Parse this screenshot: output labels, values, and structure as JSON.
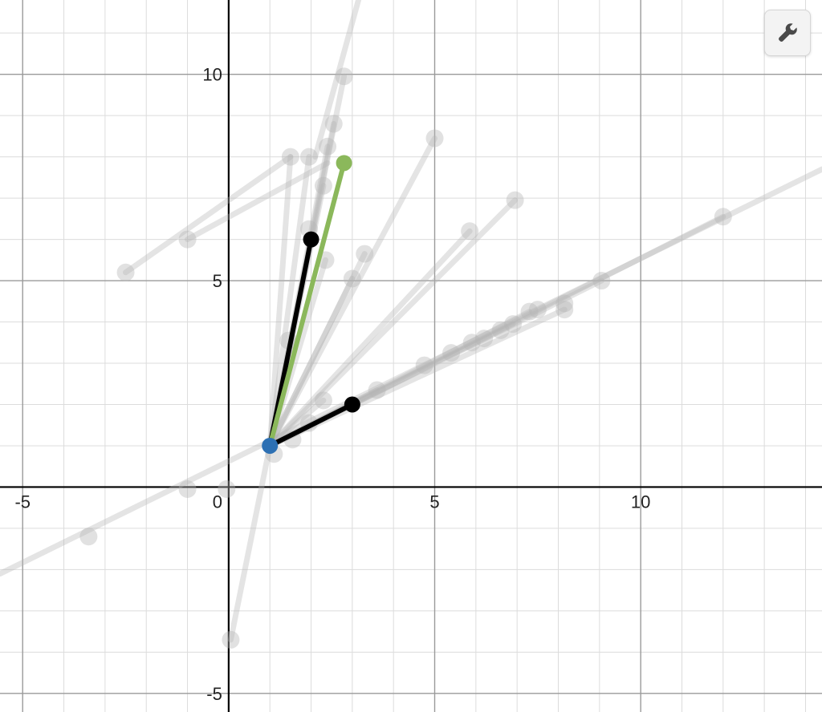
{
  "settings_button": {
    "icon": "wrench-icon"
  },
  "chart_data": {
    "type": "scatter",
    "xlim": [
      -5.55,
      14.4
    ],
    "ylim": [
      -5.45,
      11.8
    ],
    "grid": true,
    "x_ticks": [
      -5,
      0,
      5,
      10
    ],
    "y_ticks": [
      -5,
      5,
      10
    ],
    "x_tick_labels": [
      "-5",
      "0",
      "5",
      "10"
    ],
    "y_tick_labels": [
      "-5",
      "5",
      "10"
    ],
    "origin_point": {
      "x": 1,
      "y": 1,
      "color": "#2d70b3"
    },
    "ghost_color": "#b4b4b4",
    "ghost_segments": [
      {
        "x1": 1,
        "y1": 1,
        "x2": 2.8,
        "y2": 9.95
      },
      {
        "x1": 1,
        "y1": 1,
        "x2": 2.55,
        "y2": 8.8
      },
      {
        "x1": 1,
        "y1": 1,
        "x2": 2.4,
        "y2": 8.25
      },
      {
        "x1": 1,
        "y1": 1,
        "x2": 2.3,
        "y2": 7.3
      },
      {
        "x1": 1,
        "y1": 1,
        "x2": 2.35,
        "y2": 5.5
      },
      {
        "x1": 1,
        "y1": 1,
        "x2": 3.3,
        "y2": 5.65
      },
      {
        "x1": 1,
        "y1": 1,
        "x2": 3,
        "y2": 5.05
      },
      {
        "x1": 1,
        "y1": 1,
        "x2": 5,
        "y2": 8.45
      },
      {
        "x1": 1,
        "y1": 1,
        "x2": 5.85,
        "y2": 6.2
      },
      {
        "x1": 1,
        "y1": 1,
        "x2": 6.95,
        "y2": 6.95
      },
      {
        "x1": 1,
        "y1": 1,
        "x2": 12,
        "y2": 6.55
      },
      {
        "x1": 1,
        "y1": 1,
        "x2": 9.05,
        "y2": 5
      },
      {
        "x1": 1,
        "y1": 1,
        "x2": 8.15,
        "y2": 4.3
      },
      {
        "x1": 1,
        "y1": 1,
        "x2": 7.3,
        "y2": 4.25
      },
      {
        "x1": 1,
        "y1": 1,
        "x2": 6.9,
        "y2": 3.95
      },
      {
        "x1": 1,
        "y1": 1,
        "x2": 2.3,
        "y2": 2.1
      },
      {
        "x1": 1,
        "y1": 1,
        "x2": 1.6,
        "y2": 3.55
      },
      {
        "x1": 1,
        "y1": 1,
        "x2": 3.6,
        "y2": 2.35
      },
      {
        "x1": 1,
        "y1": 1,
        "x2": 1.5,
        "y2": 8
      },
      {
        "x1": 1,
        "y1": 1,
        "x2": 1.95,
        "y2": 8
      },
      {
        "x1": 1,
        "y1": 1,
        "x2": 0.05,
        "y2": -3.7
      },
      {
        "x1": -2.5,
        "y1": 5.2,
        "x2": 1.5,
        "y2": 8
      },
      {
        "x1": -1,
        "y1": 6,
        "x2": 2.4,
        "y2": 7.85
      },
      {
        "x1": -5.55,
        "y1": -2.1,
        "x2": 14.4,
        "y2": 7.7
      },
      {
        "x1": 2.1,
        "y1": 8,
        "x2": 3.15,
        "y2": 11.8
      }
    ],
    "ghost_points": [
      {
        "x": 2.8,
        "y": 9.95
      },
      {
        "x": 2.55,
        "y": 8.8
      },
      {
        "x": 2.4,
        "y": 8.25
      },
      {
        "x": 2.3,
        "y": 7.3
      },
      {
        "x": 2.35,
        "y": 5.5
      },
      {
        "x": 3.3,
        "y": 5.65
      },
      {
        "x": 3,
        "y": 5.05
      },
      {
        "x": 5,
        "y": 8.45
      },
      {
        "x": 5.85,
        "y": 6.2
      },
      {
        "x": 6.95,
        "y": 6.95
      },
      {
        "x": 12,
        "y": 6.55
      },
      {
        "x": 9.05,
        "y": 5
      },
      {
        "x": 8.15,
        "y": 4.3
      },
      {
        "x": 8.15,
        "y": 4.45
      },
      {
        "x": 7.5,
        "y": 4.3
      },
      {
        "x": 7.3,
        "y": 4.25
      },
      {
        "x": 6.9,
        "y": 3.95
      },
      {
        "x": 6.6,
        "y": 3.8
      },
      {
        "x": 6.2,
        "y": 3.6
      },
      {
        "x": 5.9,
        "y": 3.5
      },
      {
        "x": 5.4,
        "y": 3.25
      },
      {
        "x": 4.75,
        "y": 2.95
      },
      {
        "x": 3.6,
        "y": 2.35
      },
      {
        "x": 2.3,
        "y": 2.1
      },
      {
        "x": 1.95,
        "y": 1.55
      },
      {
        "x": 1.55,
        "y": 1.15
      },
      {
        "x": 1.1,
        "y": 0.8
      },
      {
        "x": 1.45,
        "y": 3.55
      },
      {
        "x": 1.95,
        "y": 6.25
      },
      {
        "x": 1.5,
        "y": 8
      },
      {
        "x": 1.95,
        "y": 8
      },
      {
        "x": -2.5,
        "y": 5.2
      },
      {
        "x": -1,
        "y": 6
      },
      {
        "x": -1,
        "y": -0.05
      },
      {
        "x": -3.4,
        "y": -1.2
      },
      {
        "x": -0.05,
        "y": -0.05
      },
      {
        "x": 0.05,
        "y": -3.7
      }
    ],
    "vectors": [
      {
        "x1": 1,
        "y1": 1,
        "x2": 2,
        "y2": 6,
        "color": "#000000"
      },
      {
        "x1": 1,
        "y1": 1,
        "x2": 3,
        "y2": 2,
        "color": "#000000"
      },
      {
        "x1": 1,
        "y1": 1,
        "x2": 2.8,
        "y2": 7.85,
        "color": "#8bb85b"
      }
    ],
    "vector_points": [
      {
        "x": 2,
        "y": 6,
        "color": "#000000"
      },
      {
        "x": 3,
        "y": 2,
        "color": "#000000"
      },
      {
        "x": 2.8,
        "y": 7.85,
        "color": "#8bb85b"
      }
    ]
  }
}
